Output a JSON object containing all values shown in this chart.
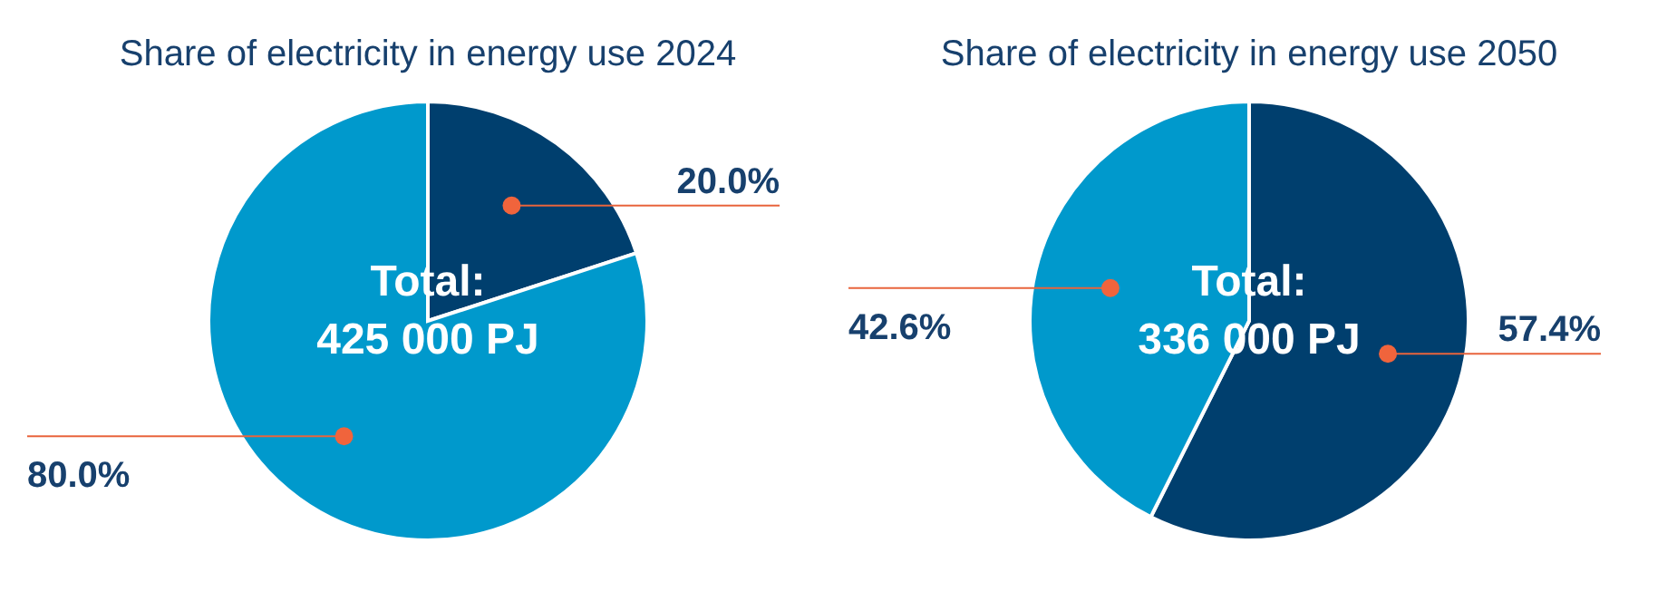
{
  "chart_data": [
    {
      "type": "pie",
      "title": "Share of electricity in energy use 2024",
      "categories": [
        null,
        null
      ],
      "values": [
        20.0,
        80.0
      ],
      "colors": [
        "#003f6e",
        "#0099cc"
      ],
      "value_labels": [
        "20.0%",
        "80.0%"
      ],
      "annotations": [
        "Total:",
        "425 000 PJ"
      ]
    },
    {
      "type": "pie",
      "title": "Share of electricity in energy use 2050",
      "categories": [
        null,
        null
      ],
      "values": [
        57.4,
        42.6
      ],
      "colors": [
        "#003f6e",
        "#0099cc"
      ],
      "value_labels": [
        "57.4%",
        "42.6%"
      ],
      "annotations": [
        "Total:",
        "336 000 PJ"
      ]
    }
  ]
}
